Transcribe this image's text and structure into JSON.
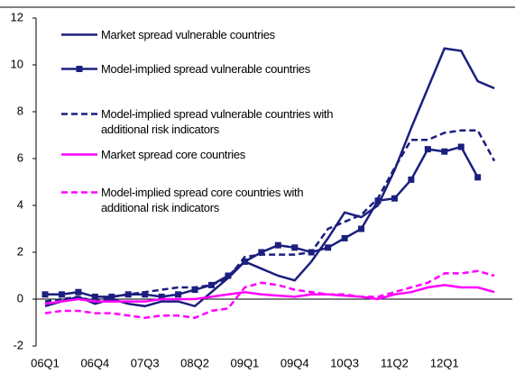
{
  "chart_data": {
    "type": "line",
    "categories": [
      "06Q1",
      null,
      null,
      "06Q4",
      null,
      null,
      "07Q3",
      null,
      null,
      "08Q2",
      null,
      null,
      "09Q1",
      null,
      null,
      "09Q4",
      null,
      null,
      "10Q3",
      null,
      null,
      "11Q2",
      null,
      null,
      "12Q1",
      null,
      null,
      null
    ],
    "ylim": [
      -2,
      12
    ],
    "yticks": [
      -2,
      0,
      2,
      4,
      6,
      8,
      10,
      12
    ],
    "series": [
      {
        "name": "Market spread vulnerable countries",
        "color": "#1b1f7e",
        "dash": false,
        "marker": "none",
        "values": [
          -0.3,
          -0.1,
          0.1,
          -0.2,
          0.0,
          -0.2,
          -0.3,
          -0.1,
          -0.1,
          -0.3,
          0.3,
          0.9,
          1.6,
          1.3,
          1.0,
          0.8,
          1.6,
          2.6,
          3.7,
          3.5,
          4.0,
          5.5,
          7.3,
          9.0,
          10.7,
          10.6,
          9.3,
          9.0
        ]
      },
      {
        "name": "Model-implied spread vulnerable countries",
        "color": "#1b1f7e",
        "dash": false,
        "marker": "square",
        "values": [
          0.2,
          0.2,
          0.3,
          0.1,
          0.1,
          0.2,
          0.2,
          0.1,
          0.2,
          0.4,
          0.6,
          1.0,
          1.6,
          2.0,
          2.3,
          2.2,
          2.0,
          2.2,
          2.6,
          3.0,
          4.2,
          4.3,
          5.1,
          6.4,
          6.3,
          6.5,
          5.2,
          null
        ]
      },
      {
        "name": "Model-implied spread vulnerable countries with additional risk indicators",
        "color": "#1b1f7e",
        "dash": true,
        "marker": "none",
        "values": [
          -0.1,
          0.0,
          0.1,
          -0.1,
          0.1,
          0.2,
          0.3,
          0.4,
          0.5,
          0.5,
          0.6,
          0.9,
          1.8,
          1.9,
          1.9,
          1.9,
          2.0,
          3.0,
          3.3,
          3.6,
          4.3,
          5.6,
          6.8,
          6.8,
          7.1,
          7.2,
          7.2,
          5.9
        ]
      },
      {
        "name": "Market spread core countries",
        "color": "#ff00ff",
        "dash": false,
        "marker": "none",
        "values": [
          -0.2,
          -0.1,
          0.0,
          -0.1,
          -0.1,
          -0.1,
          -0.1,
          0.0,
          0.0,
          0.0,
          0.1,
          0.2,
          0.3,
          0.2,
          0.15,
          0.1,
          0.2,
          0.2,
          0.15,
          0.1,
          0.0,
          0.2,
          0.3,
          0.5,
          0.6,
          0.5,
          0.5,
          0.3
        ]
      },
      {
        "name": "Model-implied spread core countries with additional risk indicators",
        "color": "#ff00ff",
        "dash": true,
        "marker": "none",
        "values": [
          -0.6,
          -0.5,
          -0.5,
          -0.6,
          -0.6,
          -0.7,
          -0.8,
          -0.7,
          -0.7,
          -0.8,
          -0.5,
          -0.4,
          0.5,
          0.7,
          0.6,
          0.4,
          0.3,
          0.2,
          0.2,
          0.1,
          0.1,
          0.3,
          0.5,
          0.7,
          1.1,
          1.1,
          1.2,
          1.0
        ]
      }
    ]
  }
}
